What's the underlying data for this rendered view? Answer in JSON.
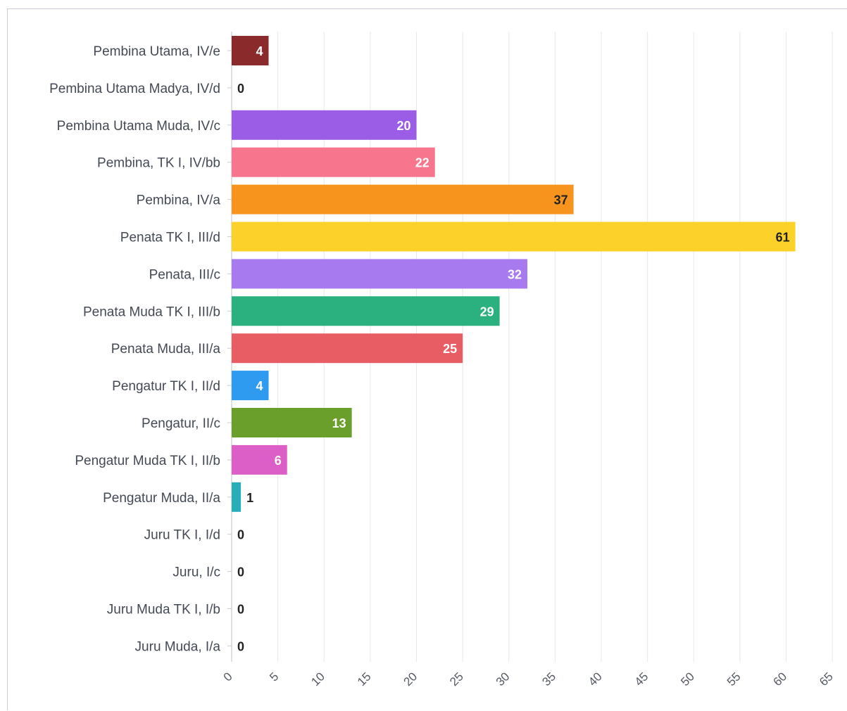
{
  "chart_data": {
    "type": "bar",
    "orientation": "horizontal",
    "title": "",
    "xlabel": "",
    "ylabel": "",
    "xlim": [
      0,
      65
    ],
    "x_ticks": [
      0,
      5,
      10,
      15,
      20,
      25,
      30,
      35,
      40,
      45,
      50,
      55,
      60,
      65
    ],
    "grid": "vertical",
    "legend": "none",
    "categories": [
      "Pembina Utama, IV/e",
      "Pembina Utama Madya, IV/d",
      "Pembina Utama Muda, IV/c",
      "Pembina, TK I, IV/bb",
      "Pembina, IV/a",
      "Penata TK I, III/d",
      "Penata, III/c",
      "Penata Muda TK I, III/b",
      "Penata Muda, III/a",
      "Pengatur TK I, II/d",
      "Pengatur, II/c",
      "Pengatur Muda TK I, II/b",
      "Pengatur Muda, II/a",
      "Juru TK I, I/d",
      "Juru, I/c",
      "Juru Muda TK I, I/b",
      "Juru Muda, I/a"
    ],
    "values": [
      4,
      0,
      20,
      22,
      37,
      61,
      32,
      29,
      25,
      4,
      13,
      6,
      1,
      0,
      0,
      0,
      0
    ],
    "bar_colors": [
      "#8b2a2a",
      "#8b2a2a",
      "#9b5de5",
      "#f7768e",
      "#f7941d",
      "#fcd12a",
      "#a77af0",
      "#2bb07f",
      "#e85d63",
      "#2e9bf0",
      "#6a9f2b",
      "#dc5fc8",
      "#26aeb9",
      "#26aeb9",
      "#26aeb9",
      "#26aeb9",
      "#26aeb9"
    ],
    "label_colors": [
      "#ffffff",
      "#222222",
      "#ffffff",
      "#ffffff",
      "#222222",
      "#222222",
      "#ffffff",
      "#ffffff",
      "#ffffff",
      "#ffffff",
      "#ffffff",
      "#ffffff",
      "#222222",
      "#222222",
      "#222222",
      "#222222",
      "#222222"
    ]
  }
}
